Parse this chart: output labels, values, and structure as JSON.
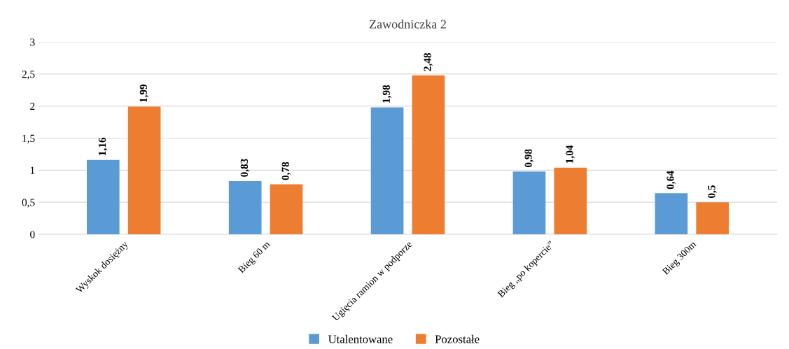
{
  "chart_data": {
    "type": "bar",
    "title": "Zawodniczka 2",
    "categories": [
      "Wyskok dosiężny",
      "Bieg 60 m",
      "Ugięcia ramion w podporze",
      "Bieg „po kopercie”",
      "Bieg 300m"
    ],
    "series": [
      {
        "name": "Utalentowane",
        "color": "#5b9bd5",
        "values": [
          1.16,
          0.83,
          1.98,
          0.98,
          0.64
        ],
        "value_labels": [
          "1,16",
          "0,83",
          "1,98",
          "0,98",
          "0,64"
        ]
      },
      {
        "name": "Pozostałe",
        "color": "#ed7d31",
        "values": [
          1.99,
          0.78,
          2.48,
          1.04,
          0.5
        ],
        "value_labels": [
          "1,99",
          "0,78",
          "2,48",
          "1,04",
          "0,5"
        ]
      }
    ],
    "ylim": [
      0,
      3
    ],
    "yticks": [
      0,
      {
        "value": 0.5,
        "label": "0,5"
      },
      1,
      {
        "value": 1.5,
        "label": "1,5"
      },
      2,
      {
        "value": 2.5,
        "label": "2,5"
      },
      3
    ],
    "grid": "y",
    "legend": "bottom"
  }
}
